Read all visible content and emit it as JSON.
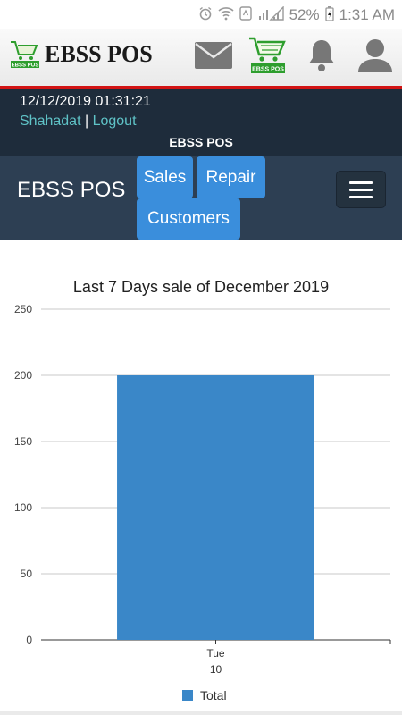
{
  "status_bar": {
    "battery": "52%",
    "time": "1:31 AM",
    "icons": [
      "alarm-icon",
      "wifi-icon",
      "signal-icon",
      "battery-icon"
    ]
  },
  "header": {
    "app_name": "EBSS POS",
    "logo_text": "EBSS POS",
    "icons": [
      "mail-icon",
      "cart-logo-icon",
      "bell-icon",
      "user-icon"
    ]
  },
  "info": {
    "datetime": "12/12/2019 01:31:21",
    "username": "Shahadat",
    "separator": "|",
    "logout": "Logout",
    "title": "EBSS POS"
  },
  "nav": {
    "brand": "EBSS POS",
    "items": [
      {
        "label": "Sales"
      },
      {
        "label": "Repair"
      },
      {
        "label": "Customers"
      }
    ]
  },
  "colors": {
    "navbar": "#2d3f53",
    "info_band": "#1e2c3b",
    "nav_button": "#3a8edc",
    "bar": "#3a87c8",
    "accent_red": "#d21414",
    "user_link": "#5fc3c7"
  },
  "chart_data": {
    "type": "bar",
    "title": "Last 7 Days sale of December 2019",
    "categories": [
      [
        "Tue",
        "10"
      ]
    ],
    "series": [
      {
        "name": "Total",
        "values": [
          200
        ]
      }
    ],
    "ylim": [
      0,
      250
    ],
    "yticks": [
      0,
      50,
      100,
      150,
      200,
      250
    ],
    "xlabel": "",
    "ylabel": "",
    "grid": true,
    "legend": "bottom"
  }
}
